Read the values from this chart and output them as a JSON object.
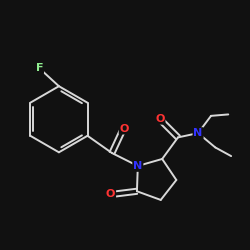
{
  "background_color": "#111111",
  "bond_color": "#d8d8d8",
  "atom_colors": {
    "F": "#90ee90",
    "O": "#ff3333",
    "N": "#3333ff",
    "C": "#d8d8d8"
  },
  "figsize": [
    2.5,
    2.5
  ],
  "dpi": 100
}
